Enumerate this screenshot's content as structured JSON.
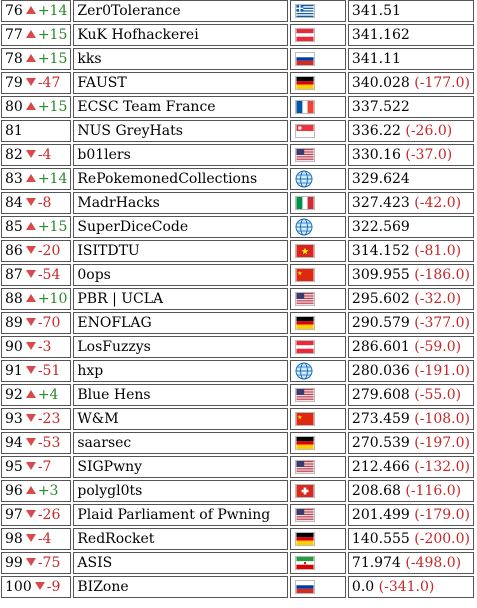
{
  "rows": [
    {
      "rank": "76",
      "dir": "up",
      "change": "+14",
      "team": "Zer0Tolerance",
      "flag": "gr",
      "score": "341.51",
      "delta": ""
    },
    {
      "rank": "77",
      "dir": "up",
      "change": "+15",
      "team": "KuK Hofhackerei",
      "flag": "at",
      "score": "341.162",
      "delta": ""
    },
    {
      "rank": "78",
      "dir": "up",
      "change": "+15",
      "team": "kks",
      "flag": "ru",
      "score": "341.11",
      "delta": ""
    },
    {
      "rank": "79",
      "dir": "down",
      "change": "-47",
      "team": "FAUST",
      "flag": "de",
      "score": "340.028",
      "delta": "(-177.0)"
    },
    {
      "rank": "80",
      "dir": "up",
      "change": "+15",
      "team": "ECSC Team France",
      "flag": "fr",
      "score": "337.522",
      "delta": ""
    },
    {
      "rank": "81",
      "dir": "none",
      "change": "",
      "team": "NUS GreyHats",
      "flag": "sg",
      "score": "336.22",
      "delta": "(-26.0)"
    },
    {
      "rank": "82",
      "dir": "down",
      "change": "-4",
      "team": "b01lers",
      "flag": "us",
      "score": "330.16",
      "delta": "(-37.0)"
    },
    {
      "rank": "83",
      "dir": "up",
      "change": "+14",
      "team": "RePokemonedCollections",
      "flag": "globe",
      "score": "329.624",
      "delta": ""
    },
    {
      "rank": "84",
      "dir": "down",
      "change": "-8",
      "team": "MadrHacks",
      "flag": "it",
      "score": "327.423",
      "delta": "(-42.0)"
    },
    {
      "rank": "85",
      "dir": "up",
      "change": "+15",
      "team": "SuperDiceCode",
      "flag": "globe",
      "score": "322.569",
      "delta": ""
    },
    {
      "rank": "86",
      "dir": "down",
      "change": "-20",
      "team": "ISITDTU",
      "flag": "vn",
      "score": "314.152",
      "delta": "(-81.0)"
    },
    {
      "rank": "87",
      "dir": "down",
      "change": "-54",
      "team": "0ops",
      "flag": "cn",
      "score": "309.955",
      "delta": "(-186.0)"
    },
    {
      "rank": "88",
      "dir": "up",
      "change": "+10",
      "team": "PBR | UCLA",
      "flag": "us",
      "score": "295.602",
      "delta": "(-32.0)"
    },
    {
      "rank": "89",
      "dir": "down",
      "change": "-70",
      "team": "ENOFLAG",
      "flag": "de",
      "score": "290.579",
      "delta": "(-377.0)"
    },
    {
      "rank": "90",
      "dir": "down",
      "change": "-3",
      "team": "LosFuzzys",
      "flag": "at",
      "score": "286.601",
      "delta": "(-59.0)"
    },
    {
      "rank": "91",
      "dir": "down",
      "change": "-51",
      "team": "hxp",
      "flag": "globe",
      "score": "280.036",
      "delta": "(-191.0)"
    },
    {
      "rank": "92",
      "dir": "up",
      "change": "+4",
      "team": "Blue Hens",
      "flag": "us",
      "score": "279.608",
      "delta": "(-55.0)"
    },
    {
      "rank": "93",
      "dir": "down",
      "change": "-23",
      "team": "W&M",
      "flag": "cn",
      "score": "273.459",
      "delta": "(-108.0)"
    },
    {
      "rank": "94",
      "dir": "down",
      "change": "-53",
      "team": "saarsec",
      "flag": "de",
      "score": "270.539",
      "delta": "(-197.0)"
    },
    {
      "rank": "95",
      "dir": "down",
      "change": "-7",
      "team": "SIGPwny",
      "flag": "us",
      "score": "212.466",
      "delta": "(-132.0)"
    },
    {
      "rank": "96",
      "dir": "up",
      "change": "+3",
      "team": "polygl0ts",
      "flag": "ch",
      "score": "208.68",
      "delta": "(-116.0)"
    },
    {
      "rank": "97",
      "dir": "down",
      "change": "-26",
      "team": "Plaid Parliament of Pwning",
      "flag": "us",
      "score": "201.499",
      "delta": "(-179.0)"
    },
    {
      "rank": "98",
      "dir": "down",
      "change": "-4",
      "team": "RedRocket",
      "flag": "de",
      "score": "140.555",
      "delta": "(-200.0)"
    },
    {
      "rank": "99",
      "dir": "down",
      "change": "-75",
      "team": "ASIS",
      "flag": "ir",
      "score": "71.974",
      "delta": "(-498.0)"
    },
    {
      "rank": "100",
      "dir": "down",
      "change": "-9",
      "team": "BIZone",
      "flag": "ru",
      "score": "0.0",
      "delta": "(-341.0)"
    }
  ]
}
